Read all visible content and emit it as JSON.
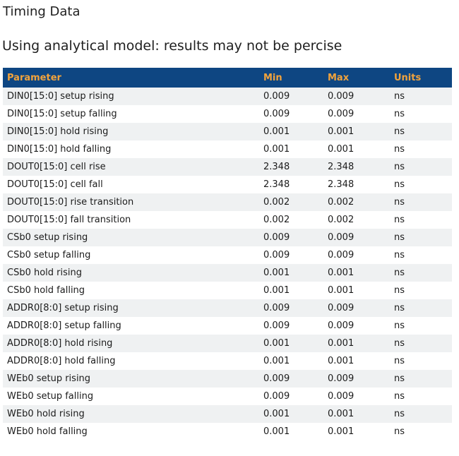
{
  "page": {
    "title": "Timing Data",
    "subtitle": "Using analytical model: results may not be percise"
  },
  "colors": {
    "header_bg": "#0E4682",
    "header_text": "#F2A33C",
    "row_alt_bg": "#EFF1F2"
  },
  "table": {
    "columns": [
      "Parameter",
      "Min",
      "Max",
      "Units"
    ],
    "rows": [
      {
        "parameter": "DIN0[15:0] setup rising",
        "min": "0.009",
        "max": "0.009",
        "units": "ns"
      },
      {
        "parameter": "DIN0[15:0] setup falling",
        "min": "0.009",
        "max": "0.009",
        "units": "ns"
      },
      {
        "parameter": "DIN0[15:0] hold rising",
        "min": "0.001",
        "max": "0.001",
        "units": "ns"
      },
      {
        "parameter": "DIN0[15:0] hold falling",
        "min": "0.001",
        "max": "0.001",
        "units": "ns"
      },
      {
        "parameter": "DOUT0[15:0] cell rise",
        "min": "2.348",
        "max": "2.348",
        "units": "ns"
      },
      {
        "parameter": "DOUT0[15:0] cell fall",
        "min": "2.348",
        "max": "2.348",
        "units": "ns"
      },
      {
        "parameter": "DOUT0[15:0] rise transition",
        "min": "0.002",
        "max": "0.002",
        "units": "ns"
      },
      {
        "parameter": "DOUT0[15:0] fall transition",
        "min": "0.002",
        "max": "0.002",
        "units": "ns"
      },
      {
        "parameter": "CSb0 setup rising",
        "min": "0.009",
        "max": "0.009",
        "units": "ns"
      },
      {
        "parameter": "CSb0 setup falling",
        "min": "0.009",
        "max": "0.009",
        "units": "ns"
      },
      {
        "parameter": "CSb0 hold rising",
        "min": "0.001",
        "max": "0.001",
        "units": "ns"
      },
      {
        "parameter": "CSb0 hold falling",
        "min": "0.001",
        "max": "0.001",
        "units": "ns"
      },
      {
        "parameter": "ADDR0[8:0] setup rising",
        "min": "0.009",
        "max": "0.009",
        "units": "ns"
      },
      {
        "parameter": "ADDR0[8:0] setup falling",
        "min": "0.009",
        "max": "0.009",
        "units": "ns"
      },
      {
        "parameter": "ADDR0[8:0] hold rising",
        "min": "0.001",
        "max": "0.001",
        "units": "ns"
      },
      {
        "parameter": "ADDR0[8:0] hold falling",
        "min": "0.001",
        "max": "0.001",
        "units": "ns"
      },
      {
        "parameter": "WEb0 setup rising",
        "min": "0.009",
        "max": "0.009",
        "units": "ns"
      },
      {
        "parameter": "WEb0 setup falling",
        "min": "0.009",
        "max": "0.009",
        "units": "ns"
      },
      {
        "parameter": "WEb0 hold rising",
        "min": "0.001",
        "max": "0.001",
        "units": "ns"
      },
      {
        "parameter": "WEb0 hold falling",
        "min": "0.001",
        "max": "0.001",
        "units": "ns"
      }
    ]
  }
}
